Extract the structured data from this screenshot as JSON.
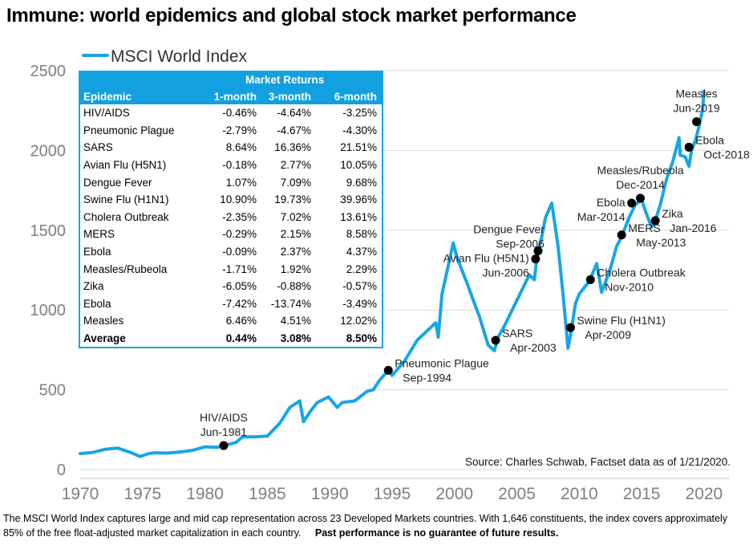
{
  "title": "Immune: world epidemics and global stock market performance",
  "chart_data": {
    "type": "line",
    "title": "Immune: world epidemics and global stock market performance",
    "series": [
      {
        "name": "MSCI World Index",
        "color": "#17a6e6",
        "x": [
          1970,
          1971,
          1972,
          1973,
          1974,
          1974.8,
          1975.5,
          1976,
          1977,
          1978,
          1979,
          1980,
          1981,
          1981.5,
          1982.5,
          1983,
          1984,
          1985,
          1986,
          1986.8,
          1987.6,
          1987.9,
          1988.5,
          1989,
          1989.9,
          1990.6,
          1991,
          1992,
          1993,
          1993.5,
          1994,
          1994.7,
          1995,
          1996,
          1997,
          1998.5,
          1998.7,
          1999,
          1999.9,
          2000.2,
          2001,
          2001.7,
          2002,
          2002.7,
          2003.2,
          2003.5,
          2004,
          2005,
          2006,
          2006.4,
          2006.6,
          2007,
          2007.3,
          2007.8,
          2008.3,
          2008.7,
          2009.1,
          2009.3,
          2009.7,
          2010,
          2010.4,
          2010.8,
          2011.4,
          2011.8,
          2012.5,
          2013,
          2013.4,
          2014,
          2014.5,
          2015,
          2015.4,
          2015.8,
          2016.1,
          2016.5,
          2017,
          2017.5,
          2018,
          2018.1,
          2018.5,
          2018.8,
          2019,
          2019.3,
          2019.6,
          2019.9,
          2020
        ],
        "values": [
          100,
          107,
          127,
          135,
          108,
          82,
          100,
          105,
          103,
          110,
          120,
          142,
          140,
          150,
          170,
          205,
          205,
          210,
          290,
          390,
          430,
          300,
          370,
          420,
          455,
          390,
          420,
          430,
          490,
          500,
          560,
          622,
          590,
          680,
          810,
          920,
          830,
          1100,
          1420,
          1330,
          1170,
          1020,
          960,
          780,
          745,
          830,
          900,
          1060,
          1220,
          1190,
          1320,
          1460,
          1580,
          1670,
          1400,
          1100,
          760,
          840,
          1040,
          1100,
          1140,
          1180,
          1290,
          1110,
          1260,
          1400,
          1460,
          1580,
          1660,
          1690,
          1600,
          1520,
          1560,
          1660,
          1820,
          1930,
          2080,
          1970,
          1960,
          1900,
          2000,
          2060,
          2150,
          2260,
          2370
        ]
      }
    ],
    "xlim": [
      1970,
      2022
    ],
    "ylim": [
      0,
      2500
    ],
    "xticks": [
      1970,
      1975,
      1980,
      1985,
      1990,
      1995,
      2000,
      2005,
      2010,
      2015,
      2020
    ],
    "yticks": [
      0,
      500,
      1000,
      1500,
      2000,
      2500
    ],
    "gridlines": "horizontal",
    "legend": "top-left",
    "events": [
      {
        "label": "HIV/AIDS",
        "date": "Jun-1981",
        "x": 1981.5,
        "y": 150,
        "label_pos": "top"
      },
      {
        "label": "Pneumonic Plague",
        "date": "Sep-1994",
        "x": 1994.7,
        "y": 622,
        "label_pos": "right"
      },
      {
        "label": "SARS",
        "date": "Apr-2003",
        "x": 2003.3,
        "y": 810,
        "label_pos": "right"
      },
      {
        "label": "Avian Flu (H5N1)",
        "date": "Jun-2006",
        "x": 2006.5,
        "y": 1320,
        "label_pos": "left"
      },
      {
        "label": "Dengue Fever",
        "date": "Sep-2006",
        "x": 2006.7,
        "y": 1370,
        "label_pos": "top-left"
      },
      {
        "label": "Swine Flu (H1N1)",
        "date": "Apr-2009",
        "x": 2009.3,
        "y": 890,
        "label_pos": "right"
      },
      {
        "label": "Cholera Outbreak",
        "date": "Nov-2010",
        "x": 2010.9,
        "y": 1190,
        "label_pos": "right"
      },
      {
        "label": "MERS",
        "date": "May-2013",
        "x": 2013.4,
        "y": 1470,
        "label_pos": "right"
      },
      {
        "label": "Ebola",
        "date": "Mar-2014",
        "x": 2014.2,
        "y": 1670,
        "label_pos": "left"
      },
      {
        "label": "Measles/Rubeola",
        "date": "Dec-2014",
        "x": 2014.9,
        "y": 1700,
        "label_pos": "top"
      },
      {
        "label": "Zika",
        "date": "Jan-2016",
        "x": 2016.1,
        "y": 1560,
        "label_pos": "right"
      },
      {
        "label": "Ebola",
        "date": "Oct-2018",
        "x": 2018.8,
        "y": 2020,
        "label_pos": "right"
      },
      {
        "label": "Measles",
        "date": "Jun-2019",
        "x": 2019.4,
        "y": 2180,
        "label_pos": "top"
      }
    ],
    "source": "Source: Charles Schwab, Factset data as of 1/21/2020."
  },
  "table": {
    "group_header": "Market Returns",
    "headers": [
      "Epidemic",
      "1-month",
      "3-month",
      "6-month"
    ],
    "rows": [
      {
        "name": "HIV/AIDS",
        "m1": "-0.46%",
        "m3": "-4.64%",
        "m6": "-3.25%"
      },
      {
        "name": "Pneumonic Plague",
        "m1": "-2.79%",
        "m3": "-4.67%",
        "m6": "-4.30%"
      },
      {
        "name": "SARS",
        "m1": "8.64%",
        "m3": "16.36%",
        "m6": "21.51%"
      },
      {
        "name": "Avian Flu (H5N1)",
        "m1": "-0.18%",
        "m3": "2.77%",
        "m6": "10.05%"
      },
      {
        "name": "Dengue Fever",
        "m1": "1.07%",
        "m3": "7.09%",
        "m6": "9.68%"
      },
      {
        "name": "Swine Flu (H1N1)",
        "m1": "10.90%",
        "m3": "19.73%",
        "m6": "39.96%"
      },
      {
        "name": "Cholera Outbreak",
        "m1": "-2.35%",
        "m3": "7.02%",
        "m6": "13.61%"
      },
      {
        "name": "MERS",
        "m1": "-0.29%",
        "m3": "2.15%",
        "m6": "8.58%"
      },
      {
        "name": "Ebola",
        "m1": "-0.09%",
        "m3": "2.37%",
        "m6": "4.37%"
      },
      {
        "name": "Measles/Rubeola",
        "m1": "-1.71%",
        "m3": "1.92%",
        "m6": "2.29%"
      },
      {
        "name": "Zika",
        "m1": "-6.05%",
        "m3": "-0.88%",
        "m6": "-0.57%"
      },
      {
        "name": "Ebola",
        "m1": "-7.42%",
        "m3": "-13.74%",
        "m6": "-3.49%"
      },
      {
        "name": "Measles",
        "m1": "6.46%",
        "m3": "4.51%",
        "m6": "12.02%"
      }
    ],
    "average": {
      "name": "Average",
      "m1": "0.44%",
      "m3": "3.08%",
      "m6": "8.50%"
    }
  },
  "footer": {
    "note": "The MSCI World Index captures large and mid cap representation across 23 Developed Markets countries. With 1,646 constituents, the index covers approximately 85% of the free float-adjusted market capitalization in each country.",
    "disclaimer": "Past performance is no guarantee of future results."
  },
  "colors": {
    "line": "#17a6e6",
    "table_header": "#12a0e0",
    "marker": "#000000",
    "axis_text": "#7f7f7f",
    "grid": "#d9d9d9"
  }
}
